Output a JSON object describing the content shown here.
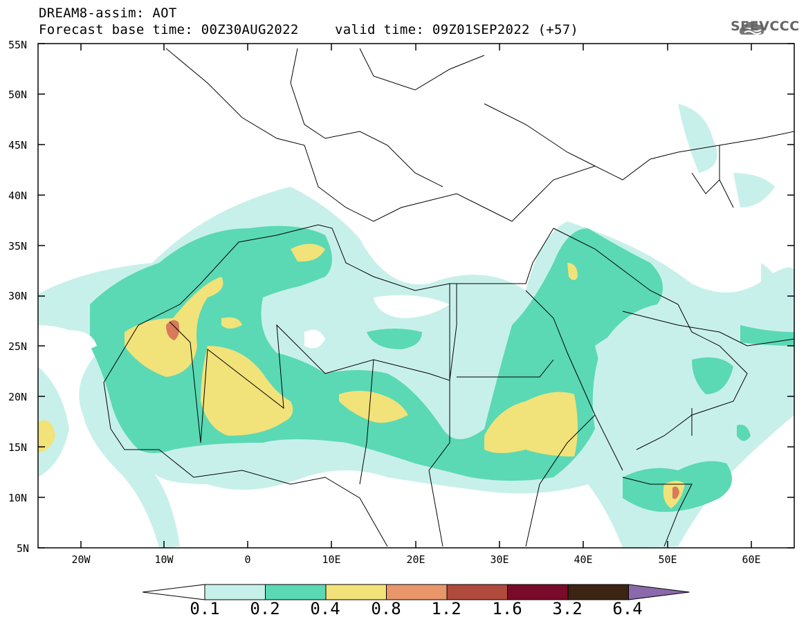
{
  "header": {
    "title": "DREAM8-assim: AOT",
    "base_time": "Forecast base time: 00Z30AUG2022",
    "valid_time": "valid time: 09Z01SEP2022 (+57)",
    "logo_text": "SEEVCCC"
  },
  "map": {
    "variable": "Aerosol optical thickness",
    "lat_labels": [
      "55N",
      "50N",
      "45N",
      "40N",
      "35N",
      "30N",
      "25N",
      "20N",
      "15N",
      "10N",
      "5N"
    ],
    "lon_labels": [
      "20W",
      "10W",
      "0",
      "10E",
      "20E",
      "30E",
      "40E",
      "50E",
      "60E"
    ]
  },
  "colorbar": {
    "levels": [
      "0.1",
      "0.2",
      "0.4",
      "0.8",
      "1.2",
      "1.6",
      "3.2",
      "6.4"
    ],
    "colors": [
      "#ffffff",
      "#c8f0ea",
      "#5ad9b4",
      "#f2e27a",
      "#e8966a",
      "#b04a3c",
      "#7a0a2a",
      "#3c2414",
      "#8a6aaa"
    ]
  }
}
